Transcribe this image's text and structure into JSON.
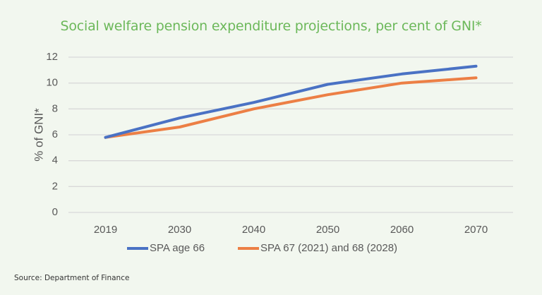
{
  "chart_data": {
    "type": "line",
    "title": "Social welfare pension expenditure projections, per cent of GNI*",
    "xlabel": "",
    "ylabel": "% of GNI*",
    "categories": [
      "2019",
      "2030",
      "2040",
      "2050",
      "2060",
      "2070"
    ],
    "ylim": [
      0,
      12
    ],
    "yticks": [
      0,
      2,
      4,
      6,
      8,
      10,
      12
    ],
    "grid": true,
    "legend_position": "bottom",
    "series": [
      {
        "name": "SPA age 66",
        "color": "#4a72c4",
        "values": [
          5.8,
          7.3,
          8.5,
          9.9,
          10.7,
          11.3
        ]
      },
      {
        "name": "SPA 67 (2021) and 68 (2028)",
        "color": "#ec7f45",
        "values": [
          5.8,
          6.6,
          8.0,
          9.1,
          10.0,
          10.4
        ]
      }
    ],
    "source": "Source: Department of Finance"
  },
  "colors": {
    "title": "#6cb85a",
    "gridline": "#d9d9d9",
    "background": "#f2f7ef"
  }
}
